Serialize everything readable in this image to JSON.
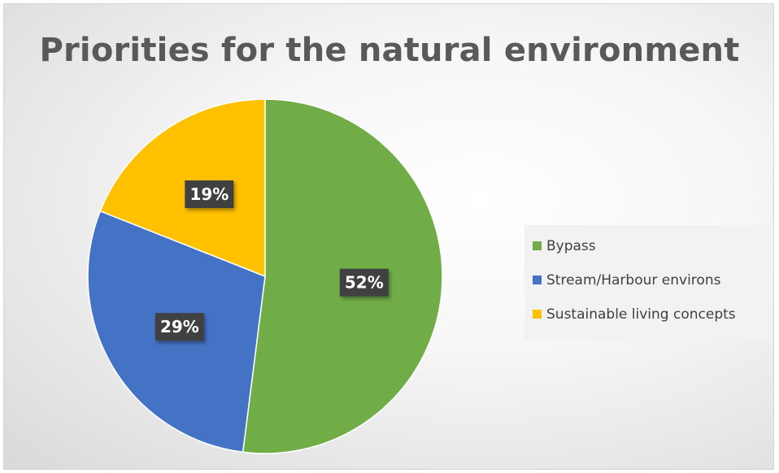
{
  "chart_data": {
    "type": "pie",
    "title": "Priorities for the natural environment",
    "categories": [
      "Bypass",
      "Stream/Harbour environs",
      "Sustainable living concepts"
    ],
    "values": [
      52,
      29,
      19
    ],
    "data_labels": [
      "52%",
      "29%",
      "19%"
    ],
    "colors": [
      "#70ad47",
      "#4472c4",
      "#ffc000"
    ],
    "legend_position": "right"
  }
}
